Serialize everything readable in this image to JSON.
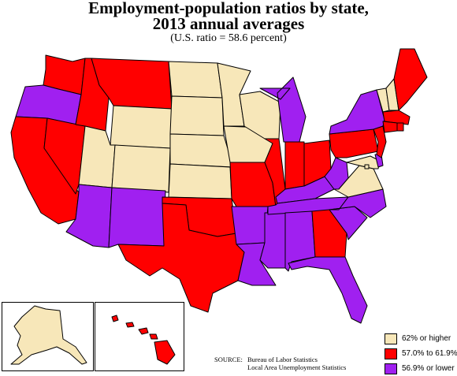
{
  "title_line1": "Employment-population ratios by state,",
  "title_line2": "2013 annual averages",
  "subtitle": "(U.S. ratio = 58.6 percent)",
  "source_label": "SOURCE:",
  "source_line1": "Bureau of Labor Statistics",
  "source_line2": "Local Area Unemployment Statistics",
  "colors": {
    "high": "#f7e7b9",
    "mid": "#ff0000",
    "low": "#a020f0"
  },
  "legend": [
    {
      "label": "62% or higher",
      "color": "#f7e7b9"
    },
    {
      "label": "57.0% to 61.9%",
      "color": "#ff0000"
    },
    {
      "label": "56.9% or lower",
      "color": "#a020f0"
    }
  ],
  "state_categories": {
    "WA": "mid",
    "OR": "low",
    "CA": "mid",
    "NV": "mid",
    "ID": "mid",
    "MT": "mid",
    "WY": "high",
    "UT": "high",
    "AZ": "low",
    "CO": "high",
    "NM": "low",
    "ND": "high",
    "SD": "high",
    "NE": "high",
    "KS": "high",
    "OK": "mid",
    "TX": "mid",
    "MN": "high",
    "IA": "high",
    "MO": "mid",
    "AR": "low",
    "LA": "low",
    "WI": "high",
    "IL": "mid",
    "MS": "low",
    "MI": "low",
    "IN": "mid",
    "KY": "low",
    "TN": "low",
    "AL": "low",
    "OH": "mid",
    "WV": "low",
    "GA": "mid",
    "FL": "low",
    "SC": "low",
    "NC": "low",
    "VA": "high",
    "PA": "mid",
    "NY": "low",
    "VT": "high",
    "NH": "high",
    "ME": "mid",
    "MA": "mid",
    "CT": "mid",
    "RI": "mid",
    "NJ": "mid",
    "DE": "low",
    "MD": "high",
    "DC": "high",
    "AK": "high",
    "HI": "mid"
  }
}
